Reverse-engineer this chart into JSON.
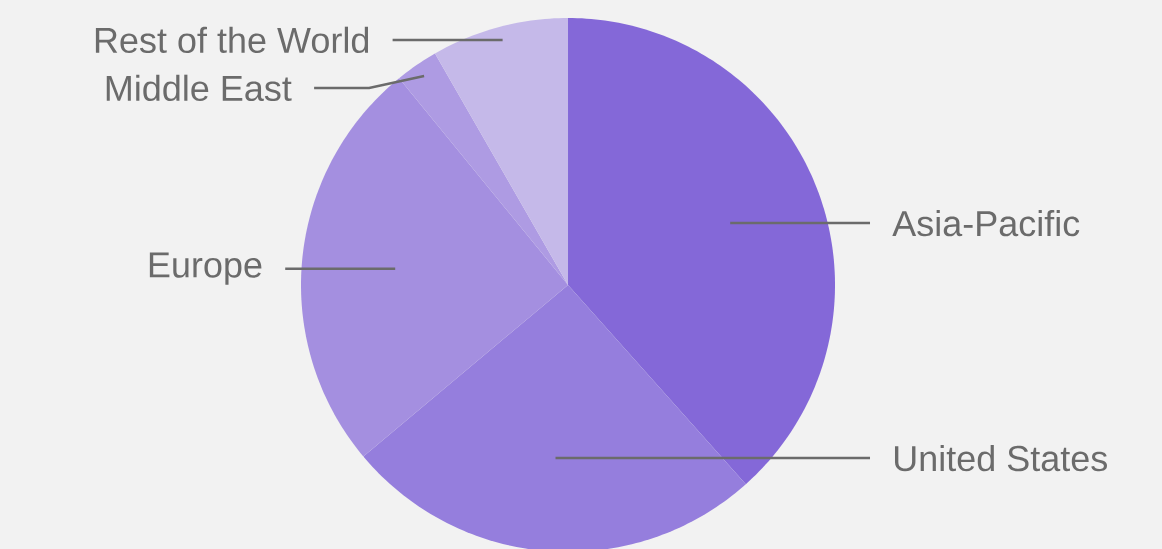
{
  "chart_data": {
    "type": "pie",
    "categories": [
      "Asia-Pacific",
      "United States",
      "Europe",
      "Middle East",
      "Rest of the World"
    ],
    "values": [
      38.4,
      25.5,
      25.2,
      2.6,
      8.3
    ],
    "colors": [
      "#8468d8",
      "#957edd",
      "#a48fe0",
      "#ae9be3",
      "#c5b9e9"
    ]
  }
}
